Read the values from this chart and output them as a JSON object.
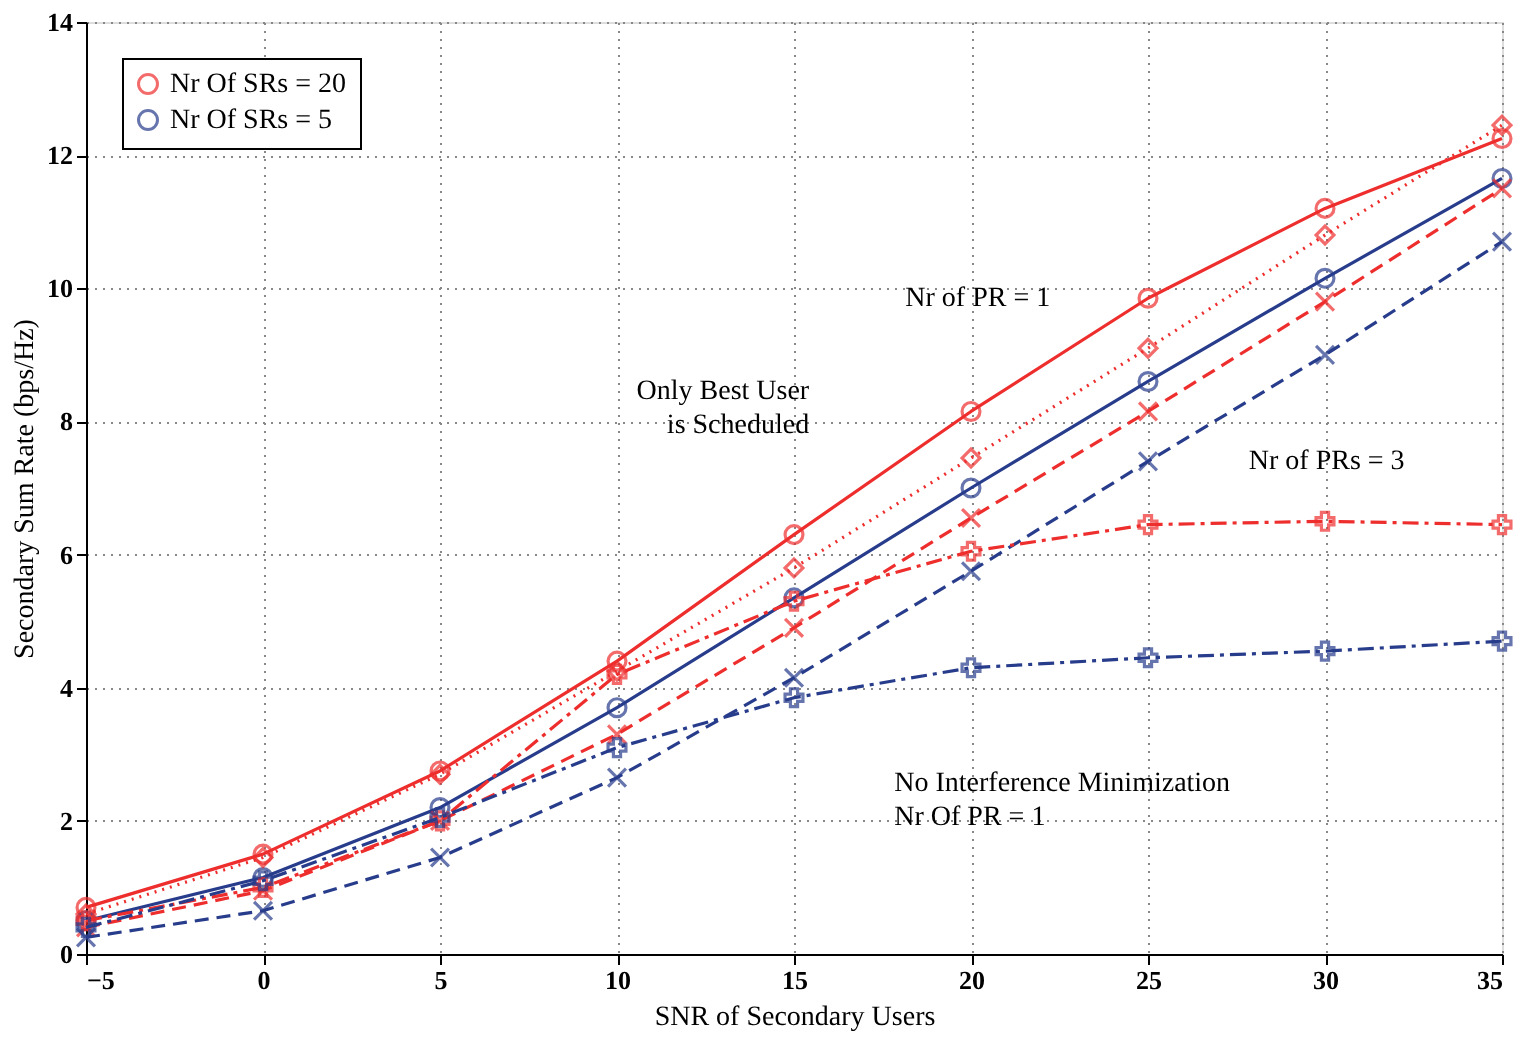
{
  "chart_data": {
    "type": "line",
    "xlabel": "SNR of Secondary Users",
    "ylabel": "Secondary Sum Rate (bps/Hz)",
    "x": [
      -5,
      0,
      5,
      10,
      15,
      20,
      25,
      30,
      35
    ],
    "xlim": [
      -5,
      35
    ],
    "xticks": [
      -5,
      0,
      5,
      10,
      15,
      20,
      25,
      30,
      35
    ],
    "ylim": [
      0,
      14
    ],
    "yticks": [
      0,
      2,
      4,
      6,
      8,
      10,
      12,
      14
    ],
    "grid": true,
    "legend": "top left",
    "series": [
      {
        "name": "Nr Of SRs = 20",
        "color": "#ee2d2d",
        "marker": "circle",
        "line_style": "solid",
        "values": [
          0.7,
          1.5,
          2.75,
          4.4,
          6.3,
          8.15,
          9.85,
          11.2,
          12.25
        ]
      },
      {
        "name": "Nr Of SRs = 5",
        "color": "#283c8c",
        "marker": "circle",
        "line_style": "solid",
        "values": [
          0.5,
          1.15,
          2.2,
          3.7,
          5.35,
          7.0,
          8.6,
          10.15,
          11.65
        ]
      },
      {
        "color": "#ee2d2d",
        "marker": "diamond",
        "line_style": "dotted",
        "values": [
          0.6,
          1.45,
          2.7,
          4.25,
          5.8,
          7.45,
          9.1,
          10.8,
          12.45
        ]
      },
      {
        "color": "#ee2d2d",
        "marker": "x",
        "line_style": "dashed",
        "values": [
          0.4,
          0.95,
          2.0,
          3.3,
          4.9,
          6.55,
          8.15,
          9.8,
          11.5
        ]
      },
      {
        "color": "#283c8c",
        "marker": "x",
        "line_style": "dashed",
        "values": [
          0.25,
          0.65,
          1.45,
          2.65,
          4.15,
          5.75,
          7.4,
          9.0,
          10.7
        ]
      },
      {
        "color": "#ee2d2d",
        "marker": "cross",
        "line_style": "dashdot",
        "values": [
          0.5,
          1.0,
          2.0,
          4.2,
          5.3,
          6.05,
          6.45,
          6.5,
          6.45
        ]
      },
      {
        "color": "#283c8c",
        "marker": "cross",
        "line_style": "dashdot",
        "values": [
          0.4,
          1.1,
          2.05,
          3.1,
          3.85,
          4.3,
          4.45,
          4.55,
          4.7
        ]
      }
    ],
    "annotations": [
      "Nr of PR = 1",
      "Only Best User\nis Scheduled",
      "Nr of PRs = 3",
      "No Interference Minimization\nNr Of PR = 1"
    ]
  }
}
